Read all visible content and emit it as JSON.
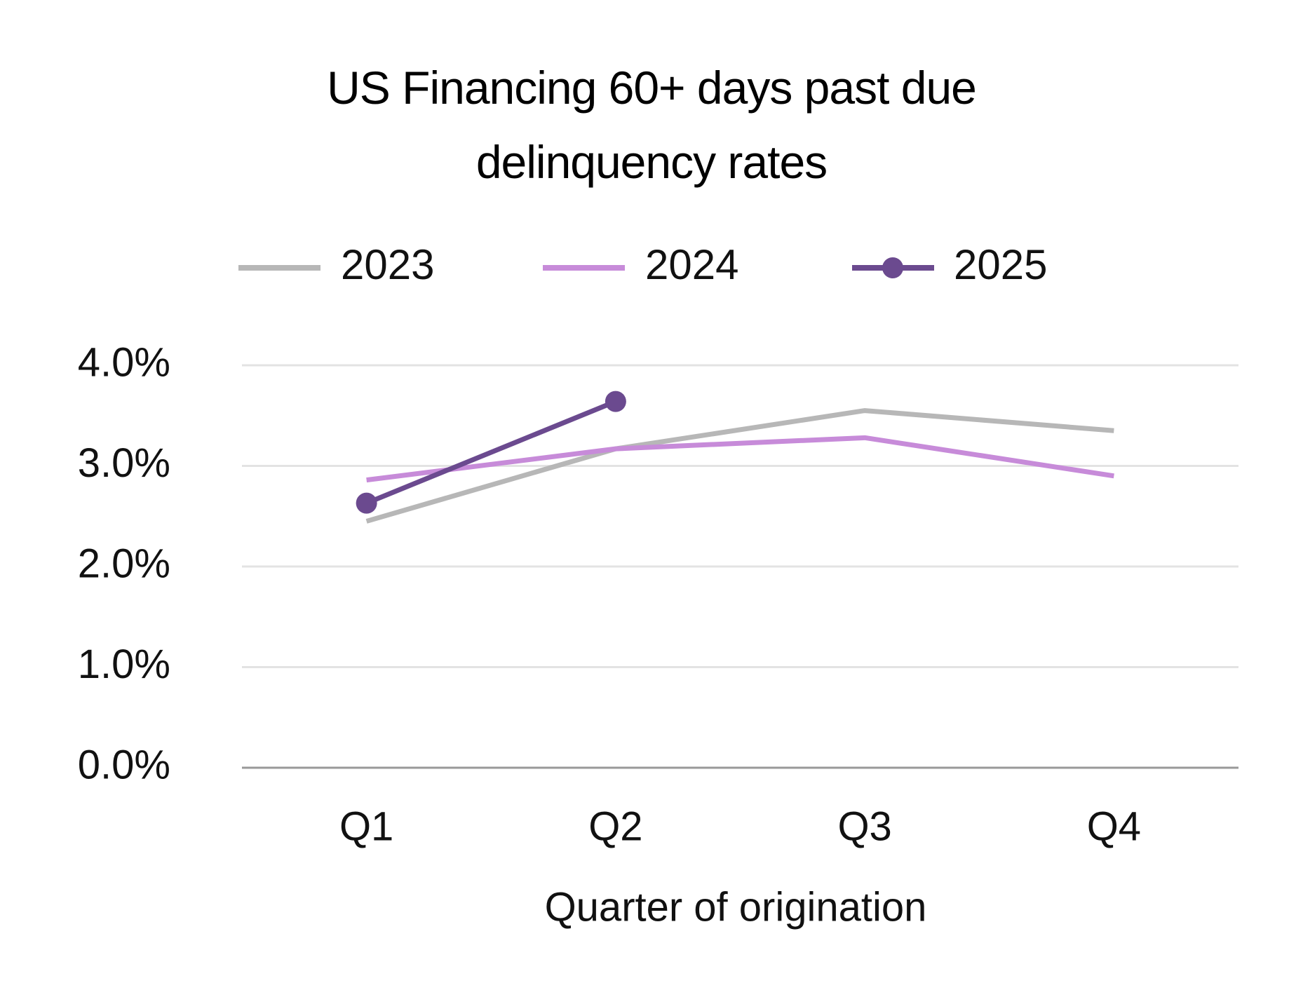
{
  "chart_data": {
    "type": "line",
    "title": "US Financing 60+ days past due delinquency rates",
    "x_label": "Quarter of origination",
    "categories": [
      "Q1",
      "Q2",
      "Q3",
      "Q4"
    ],
    "series": [
      {
        "name": "2023",
        "color": "#b7b7b7",
        "values": [
          2.45,
          3.17,
          3.55,
          3.35
        ]
      },
      {
        "name": "2024",
        "color": "#c78bd9",
        "values": [
          2.86,
          3.17,
          3.28,
          2.9
        ]
      },
      {
        "name": "2025",
        "color": "#6b4a8f",
        "marker": true,
        "values": [
          2.63,
          3.64,
          null,
          null
        ]
      }
    ],
    "ylim": [
      0,
      4
    ],
    "yticks": [
      {
        "value": 0,
        "label": "0.0%"
      },
      {
        "value": 1,
        "label": "1.0%"
      },
      {
        "value": 2,
        "label": "2.0%"
      },
      {
        "value": 3,
        "label": "3.0%"
      },
      {
        "value": 4,
        "label": "4.0%"
      }
    ],
    "grid": true,
    "legend": "top"
  }
}
